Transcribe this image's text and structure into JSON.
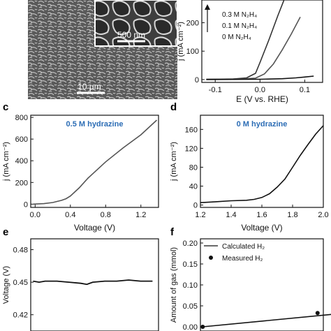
{
  "figure": {
    "sem": {
      "scalebar_main": "10 µm",
      "scalebar_inset": "500 nm"
    }
  },
  "chart_data": [
    {
      "panel": "b",
      "type": "line",
      "xlabel": "E (V vs. RHE)",
      "ylabel": "j (mA cm⁻²)",
      "xlim": [
        -0.13,
        0.14
      ],
      "ylim": [
        -10,
        280
      ],
      "xticks": [
        -0.1,
        0.0,
        0.1
      ],
      "yticks": [
        0,
        100,
        200
      ],
      "legend": [
        "0.3 M N₂H₄",
        "0.1 M N₂H₄",
        "0 M N₂H₄"
      ],
      "series": [
        {
          "name": "0.3 M N₂H₄",
          "x": [
            -0.12,
            -0.06,
            -0.03,
            -0.01,
            0.0,
            0.02,
            0.04,
            0.055
          ],
          "y": [
            1,
            2,
            6,
            22,
            60,
            140,
            225,
            285
          ]
        },
        {
          "name": "0.1 M N₂H₄",
          "x": [
            -0.12,
            -0.04,
            -0.01,
            0.01,
            0.03,
            0.05,
            0.07,
            0.09
          ],
          "y": [
            1,
            2,
            5,
            20,
            55,
            105,
            160,
            220
          ]
        },
        {
          "name": "0 M N₂H₄",
          "x": [
            -0.12,
            0.0,
            0.05,
            0.08,
            0.1,
            0.12
          ],
          "y": [
            0,
            1,
            3,
            6,
            9,
            12
          ]
        }
      ]
    },
    {
      "panel": "c",
      "type": "line",
      "title": "0.5 M hydrazine",
      "xlabel": "Voltage (V)",
      "ylabel": "j (mA cm⁻²)",
      "xlim": [
        -0.05,
        1.4
      ],
      "ylim": [
        -30,
        820
      ],
      "xticks": [
        0.0,
        0.4,
        0.8,
        1.2
      ],
      "yticks": [
        0,
        200,
        400,
        600,
        800
      ],
      "series": [
        {
          "x": [
            -0.02,
            0.1,
            0.2,
            0.3,
            0.35,
            0.4,
            0.5,
            0.6,
            0.8,
            1.0,
            1.2,
            1.38
          ],
          "y": [
            0,
            5,
            15,
            35,
            50,
            75,
            150,
            240,
            390,
            520,
            640,
            775
          ]
        }
      ]
    },
    {
      "panel": "d",
      "type": "line",
      "title": "0 M hydrazine",
      "xlabel": "Voltage (V)",
      "ylabel": "j (mA cm⁻²)",
      "xlim": [
        1.2,
        2.0
      ],
      "ylim": [
        -5,
        190
      ],
      "xticks": [
        1.2,
        1.4,
        1.6,
        1.8,
        2.0
      ],
      "yticks": [
        0,
        40,
        80,
        120,
        160
      ],
      "series": [
        {
          "x": [
            1.2,
            1.3,
            1.4,
            1.5,
            1.55,
            1.6,
            1.65,
            1.7,
            1.75,
            1.8,
            1.85,
            1.9,
            1.95,
            2.0
          ],
          "y": [
            5,
            7,
            9,
            10,
            12,
            16,
            24,
            38,
            55,
            80,
            105,
            128,
            150,
            168
          ]
        }
      ]
    },
    {
      "panel": "e",
      "type": "line",
      "ylabel": "Voltage (V)",
      "ylim": [
        0.405,
        0.49
      ],
      "yticks": [
        0.42,
        0.45,
        0.48
      ],
      "series": [
        {
          "x": [
            0,
            0.05,
            0.1,
            0.2,
            0.3,
            0.4,
            0.45,
            0.5,
            0.6,
            0.7,
            0.8,
            0.9,
            1.0
          ],
          "y": [
            0.451,
            0.45,
            0.451,
            0.451,
            0.45,
            0.449,
            0.448,
            0.45,
            0.451,
            0.451,
            0.452,
            0.451,
            0.451
          ]
        }
      ]
    },
    {
      "panel": "f",
      "type": "scatter",
      "ylabel": "Amount of gas (mmol)",
      "ylim": [
        -0.01,
        0.21
      ],
      "yticks": [
        0.0,
        0.05,
        0.1,
        0.15,
        0.2
      ],
      "legend": [
        "Calculated H₂",
        "Measured H₂"
      ],
      "series": [
        {
          "name": "Calculated H₂",
          "type": "line",
          "x": [
            0,
            7
          ],
          "y": [
            0.0,
            0.185
          ]
        },
        {
          "name": "Measured H₂",
          "type": "scatter",
          "x": [
            0,
            1,
            2,
            3,
            4,
            5,
            6,
            7
          ],
          "y": [
            0.0,
            0.033,
            0.062,
            0.092,
            0.123,
            0.155,
            0.185,
            0.185
          ]
        }
      ]
    }
  ]
}
